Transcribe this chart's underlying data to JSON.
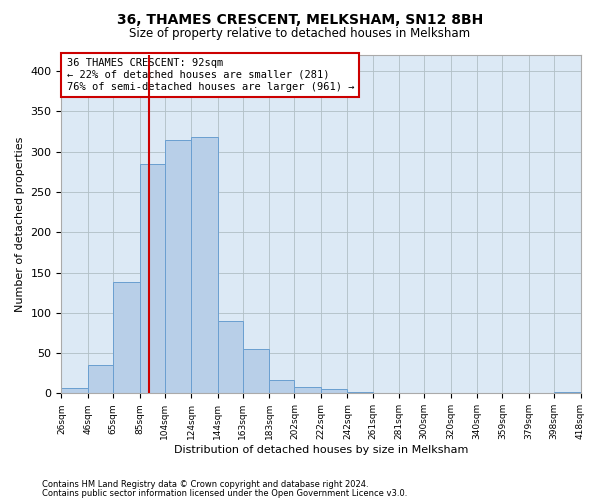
{
  "title": "36, THAMES CRESCENT, MELKSHAM, SN12 8BH",
  "subtitle": "Size of property relative to detached houses in Melksham",
  "xlabel": "Distribution of detached houses by size in Melksham",
  "ylabel": "Number of detached properties",
  "annotation_line1": "36 THAMES CRESCENT: 92sqm",
  "annotation_line2": "← 22% of detached houses are smaller (281)",
  "annotation_line3": "76% of semi-detached houses are larger (961) →",
  "property_size": 92,
  "bar_color": "#b8cfe8",
  "bar_edge_color": "#6a9fd0",
  "vline_color": "#cc0000",
  "annotation_box_color": "#cc0000",
  "background_color": "#ffffff",
  "plot_bg_color": "#dce9f5",
  "grid_color": "#b0bec5",
  "bin_edges": [
    26,
    46,
    65,
    85,
    104,
    124,
    144,
    163,
    183,
    202,
    222,
    242,
    261,
    281,
    300,
    320,
    340,
    359,
    379,
    398,
    418
  ],
  "bar_heights": [
    7,
    35,
    138,
    285,
    315,
    318,
    90,
    55,
    17,
    8,
    5,
    2,
    0,
    1,
    0,
    0,
    1,
    0,
    0,
    2
  ],
  "ylim": [
    0,
    420
  ],
  "yticks": [
    0,
    50,
    100,
    150,
    200,
    250,
    300,
    350,
    400
  ],
  "footer_line1": "Contains HM Land Registry data © Crown copyright and database right 2024.",
  "footer_line2": "Contains public sector information licensed under the Open Government Licence v3.0."
}
